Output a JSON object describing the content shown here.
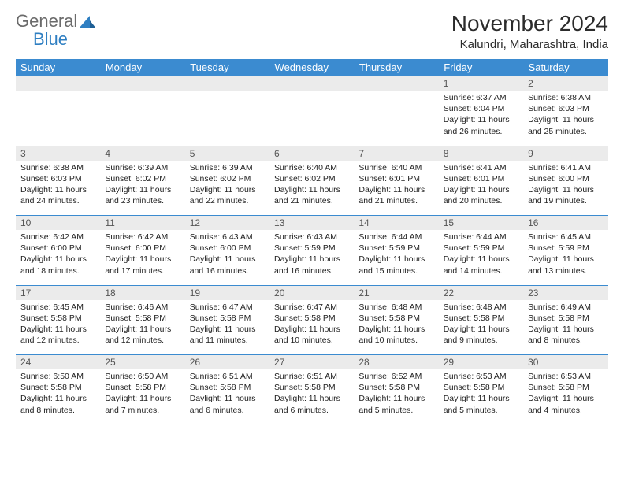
{
  "logo": {
    "text1": "General",
    "text2": "Blue"
  },
  "title": "November 2024",
  "location": "Kalundri, Maharashtra, India",
  "colors": {
    "header_bg": "#3b8bd0",
    "header_text": "#ffffff",
    "daynum_bg": "#ebebeb",
    "border": "#3b8bd0",
    "logo_gray": "#6b6b6b",
    "logo_blue": "#2f7fc2"
  },
  "weekdays": [
    "Sunday",
    "Monday",
    "Tuesday",
    "Wednesday",
    "Thursday",
    "Friday",
    "Saturday"
  ],
  "weeks": [
    {
      "nums": [
        "",
        "",
        "",
        "",
        "",
        "1",
        "2"
      ],
      "info": [
        null,
        null,
        null,
        null,
        null,
        {
          "sunrise": "Sunrise: 6:37 AM",
          "sunset": "Sunset: 6:04 PM",
          "day1": "Daylight: 11 hours",
          "day2": "and 26 minutes."
        },
        {
          "sunrise": "Sunrise: 6:38 AM",
          "sunset": "Sunset: 6:03 PM",
          "day1": "Daylight: 11 hours",
          "day2": "and 25 minutes."
        }
      ]
    },
    {
      "nums": [
        "3",
        "4",
        "5",
        "6",
        "7",
        "8",
        "9"
      ],
      "info": [
        {
          "sunrise": "Sunrise: 6:38 AM",
          "sunset": "Sunset: 6:03 PM",
          "day1": "Daylight: 11 hours",
          "day2": "and 24 minutes."
        },
        {
          "sunrise": "Sunrise: 6:39 AM",
          "sunset": "Sunset: 6:02 PM",
          "day1": "Daylight: 11 hours",
          "day2": "and 23 minutes."
        },
        {
          "sunrise": "Sunrise: 6:39 AM",
          "sunset": "Sunset: 6:02 PM",
          "day1": "Daylight: 11 hours",
          "day2": "and 22 minutes."
        },
        {
          "sunrise": "Sunrise: 6:40 AM",
          "sunset": "Sunset: 6:02 PM",
          "day1": "Daylight: 11 hours",
          "day2": "and 21 minutes."
        },
        {
          "sunrise": "Sunrise: 6:40 AM",
          "sunset": "Sunset: 6:01 PM",
          "day1": "Daylight: 11 hours",
          "day2": "and 21 minutes."
        },
        {
          "sunrise": "Sunrise: 6:41 AM",
          "sunset": "Sunset: 6:01 PM",
          "day1": "Daylight: 11 hours",
          "day2": "and 20 minutes."
        },
        {
          "sunrise": "Sunrise: 6:41 AM",
          "sunset": "Sunset: 6:00 PM",
          "day1": "Daylight: 11 hours",
          "day2": "and 19 minutes."
        }
      ]
    },
    {
      "nums": [
        "10",
        "11",
        "12",
        "13",
        "14",
        "15",
        "16"
      ],
      "info": [
        {
          "sunrise": "Sunrise: 6:42 AM",
          "sunset": "Sunset: 6:00 PM",
          "day1": "Daylight: 11 hours",
          "day2": "and 18 minutes."
        },
        {
          "sunrise": "Sunrise: 6:42 AM",
          "sunset": "Sunset: 6:00 PM",
          "day1": "Daylight: 11 hours",
          "day2": "and 17 minutes."
        },
        {
          "sunrise": "Sunrise: 6:43 AM",
          "sunset": "Sunset: 6:00 PM",
          "day1": "Daylight: 11 hours",
          "day2": "and 16 minutes."
        },
        {
          "sunrise": "Sunrise: 6:43 AM",
          "sunset": "Sunset: 5:59 PM",
          "day1": "Daylight: 11 hours",
          "day2": "and 16 minutes."
        },
        {
          "sunrise": "Sunrise: 6:44 AM",
          "sunset": "Sunset: 5:59 PM",
          "day1": "Daylight: 11 hours",
          "day2": "and 15 minutes."
        },
        {
          "sunrise": "Sunrise: 6:44 AM",
          "sunset": "Sunset: 5:59 PM",
          "day1": "Daylight: 11 hours",
          "day2": "and 14 minutes."
        },
        {
          "sunrise": "Sunrise: 6:45 AM",
          "sunset": "Sunset: 5:59 PM",
          "day1": "Daylight: 11 hours",
          "day2": "and 13 minutes."
        }
      ]
    },
    {
      "nums": [
        "17",
        "18",
        "19",
        "20",
        "21",
        "22",
        "23"
      ],
      "info": [
        {
          "sunrise": "Sunrise: 6:45 AM",
          "sunset": "Sunset: 5:58 PM",
          "day1": "Daylight: 11 hours",
          "day2": "and 12 minutes."
        },
        {
          "sunrise": "Sunrise: 6:46 AM",
          "sunset": "Sunset: 5:58 PM",
          "day1": "Daylight: 11 hours",
          "day2": "and 12 minutes."
        },
        {
          "sunrise": "Sunrise: 6:47 AM",
          "sunset": "Sunset: 5:58 PM",
          "day1": "Daylight: 11 hours",
          "day2": "and 11 minutes."
        },
        {
          "sunrise": "Sunrise: 6:47 AM",
          "sunset": "Sunset: 5:58 PM",
          "day1": "Daylight: 11 hours",
          "day2": "and 10 minutes."
        },
        {
          "sunrise": "Sunrise: 6:48 AM",
          "sunset": "Sunset: 5:58 PM",
          "day1": "Daylight: 11 hours",
          "day2": "and 10 minutes."
        },
        {
          "sunrise": "Sunrise: 6:48 AM",
          "sunset": "Sunset: 5:58 PM",
          "day1": "Daylight: 11 hours",
          "day2": "and 9 minutes."
        },
        {
          "sunrise": "Sunrise: 6:49 AM",
          "sunset": "Sunset: 5:58 PM",
          "day1": "Daylight: 11 hours",
          "day2": "and 8 minutes."
        }
      ]
    },
    {
      "nums": [
        "24",
        "25",
        "26",
        "27",
        "28",
        "29",
        "30"
      ],
      "info": [
        {
          "sunrise": "Sunrise: 6:50 AM",
          "sunset": "Sunset: 5:58 PM",
          "day1": "Daylight: 11 hours",
          "day2": "and 8 minutes."
        },
        {
          "sunrise": "Sunrise: 6:50 AM",
          "sunset": "Sunset: 5:58 PM",
          "day1": "Daylight: 11 hours",
          "day2": "and 7 minutes."
        },
        {
          "sunrise": "Sunrise: 6:51 AM",
          "sunset": "Sunset: 5:58 PM",
          "day1": "Daylight: 11 hours",
          "day2": "and 6 minutes."
        },
        {
          "sunrise": "Sunrise: 6:51 AM",
          "sunset": "Sunset: 5:58 PM",
          "day1": "Daylight: 11 hours",
          "day2": "and 6 minutes."
        },
        {
          "sunrise": "Sunrise: 6:52 AM",
          "sunset": "Sunset: 5:58 PM",
          "day1": "Daylight: 11 hours",
          "day2": "and 5 minutes."
        },
        {
          "sunrise": "Sunrise: 6:53 AM",
          "sunset": "Sunset: 5:58 PM",
          "day1": "Daylight: 11 hours",
          "day2": "and 5 minutes."
        },
        {
          "sunrise": "Sunrise: 6:53 AM",
          "sunset": "Sunset: 5:58 PM",
          "day1": "Daylight: 11 hours",
          "day2": "and 4 minutes."
        }
      ]
    }
  ]
}
